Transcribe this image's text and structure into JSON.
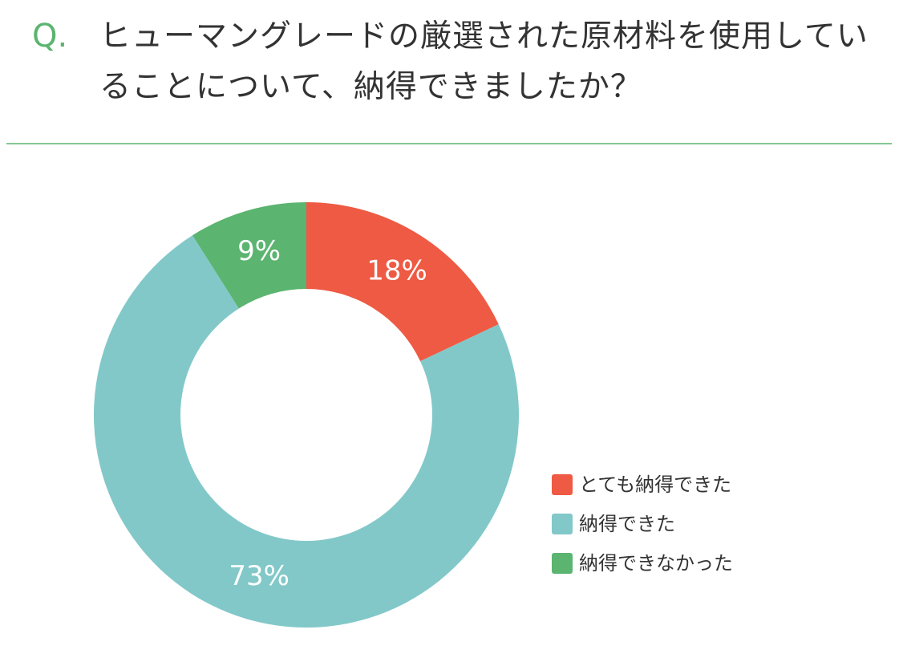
{
  "chart_data": {
    "type": "donut",
    "question_label": "Q.",
    "title": "ヒューマングレードの厳選された原材料を使用していることについて、納得できましたか？",
    "categories": [
      "とても納得できた",
      "納得できた",
      "納得できなかった"
    ],
    "values": [
      18,
      73,
      9
    ],
    "value_labels": [
      "18%",
      "73%",
      "9%"
    ],
    "colors": [
      "#ee5a43",
      "#82c8c9",
      "#5bb46f"
    ]
  }
}
